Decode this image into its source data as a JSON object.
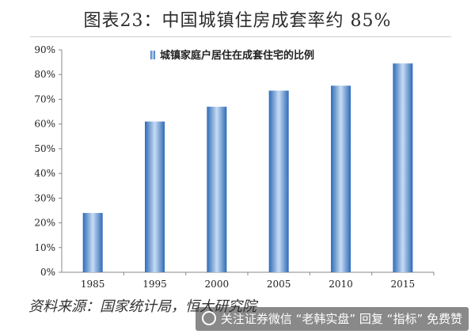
{
  "title": "图表23：中国城镇住房成套率约 85%",
  "source": "资料来源：国家统计局，恒大研究院",
  "watermark": "关注证券微信 “老韩实盘” 回复 “指标” 免费赞",
  "colors": {
    "bar": "#3f7cc7",
    "bar_light": "#b9d2ef",
    "axis": "#888888",
    "grid": "#d9d9d9",
    "text": "#222222"
  },
  "chart_data": {
    "type": "bar",
    "categories": [
      "1985",
      "1995",
      "2000",
      "2005",
      "2010",
      "2015"
    ],
    "series": [
      {
        "name": "城镇家庭户居住在成套住宅的比例",
        "values": [
          24,
          61,
          67,
          73.5,
          75.5,
          84.5
        ]
      }
    ],
    "yticks": [
      "0%",
      "10%",
      "20%",
      "30%",
      "40%",
      "50%",
      "60%",
      "70%",
      "80%",
      "90%"
    ],
    "ylim": [
      0,
      90
    ],
    "legend_position": "top-left",
    "grid": false
  }
}
